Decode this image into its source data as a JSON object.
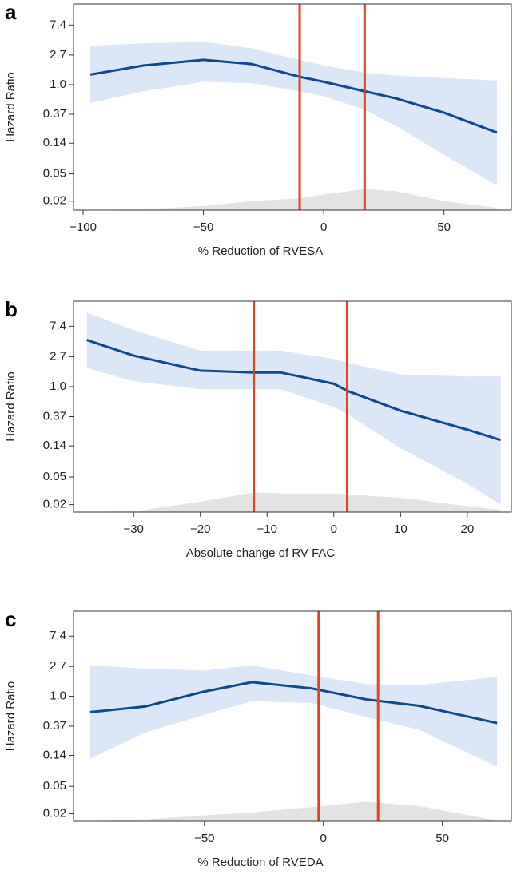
{
  "chart_data": [
    {
      "type": "line",
      "panel": "a",
      "ylabel": "Hazard Ratio",
      "xlabel": "% Reduction of RVESA",
      "log_y": true,
      "x": [
        -97,
        -75,
        -50,
        -30,
        -10,
        0,
        17,
        30,
        50,
        72
      ],
      "values": [
        1.4,
        1.9,
        2.3,
        2.0,
        1.3,
        1.1,
        0.8,
        0.63,
        0.39,
        0.2
      ],
      "upper": [
        3.7,
        4.0,
        4.2,
        3.4,
        2.3,
        1.9,
        1.5,
        1.35,
        1.25,
        1.15
      ],
      "lower": [
        0.54,
        0.8,
        1.1,
        1.05,
        0.8,
        0.68,
        0.43,
        0.25,
        0.095,
        0.034
      ],
      "density": [
        0.0149,
        0.0152,
        0.017,
        0.02,
        0.022,
        0.025,
        0.03,
        0.028,
        0.02,
        0.016
      ],
      "cutoffs": [
        -10,
        17
      ],
      "color": "#0d4a8c",
      "band_color": "#dbe6f7",
      "density_color": "#e3e3e3",
      "cutoff_color": "#e8401c",
      "xlim": [
        -104,
        78
      ],
      "ylim": [
        0.0148,
        15
      ],
      "xticks": [
        {
          "value": -100,
          "label": "−100"
        },
        {
          "value": -50,
          "label": "−50"
        },
        0,
        50
      ],
      "yticks": [
        0.02,
        0.05,
        0.14,
        0.37,
        {
          "value": 1,
          "label": "1.0"
        },
        2.7,
        7.4
      ]
    },
    {
      "type": "line",
      "panel": "b",
      "ylabel": "Hazard Ratio",
      "xlabel": "Absolute change of RV FAC",
      "log_y": true,
      "x": [
        -37,
        -30,
        -20,
        -12,
        -8,
        0,
        2,
        10,
        20,
        25
      ],
      "values": [
        4.7,
        2.8,
        1.7,
        1.6,
        1.6,
        1.1,
        0.87,
        0.45,
        0.24,
        0.17
      ],
      "upper": [
        11.6,
        6.5,
        3.3,
        3.3,
        3.3,
        2.5,
        2.2,
        1.5,
        1.4,
        1.4
      ],
      "lower": [
        1.85,
        1.2,
        0.92,
        0.92,
        0.92,
        0.51,
        0.4,
        0.13,
        0.04,
        0.02
      ],
      "density": [
        0.0157,
        0.016,
        0.022,
        0.03,
        0.029,
        0.029,
        0.028,
        0.025,
        0.019,
        0.017
      ],
      "cutoffs": [
        -12,
        2
      ],
      "color": "#0d4a8c",
      "band_color": "#dbe6f7",
      "density_color": "#e3e3e3",
      "cutoff_color": "#e8401c",
      "xlim": [
        -39,
        26.6
      ],
      "ylim": [
        0.0156,
        17
      ],
      "xticks": [
        {
          "value": -30,
          "label": "−30"
        },
        {
          "value": -20,
          "label": "−20"
        },
        {
          "value": -10,
          "label": "−10"
        },
        0,
        10,
        20
      ],
      "yticks": [
        0.02,
        0.05,
        0.14,
        0.37,
        {
          "value": 1,
          "label": "1.0"
        },
        2.7,
        7.4
      ]
    },
    {
      "type": "line",
      "panel": "c",
      "ylabel": "Hazard Ratio",
      "xlabel": "% Reduction of RVEDA",
      "log_y": true,
      "x": [
        -98,
        -75,
        -50,
        -30,
        -5,
        18,
        40,
        73
      ],
      "values": [
        0.59,
        0.71,
        1.17,
        1.6,
        1.3,
        0.9,
        0.73,
        0.41
      ],
      "upper": [
        2.8,
        2.5,
        2.35,
        2.8,
        2.0,
        1.5,
        1.45,
        1.9
      ],
      "lower": [
        0.125,
        0.3,
        0.54,
        0.85,
        0.8,
        0.5,
        0.33,
        0.096
      ],
      "density": [
        0.0157,
        0.0165,
        0.019,
        0.021,
        0.025,
        0.03,
        0.026,
        0.016
      ],
      "cutoffs": [
        -2,
        23
      ],
      "color": "#0d4a8c",
      "band_color": "#dbe6f7",
      "density_color": "#e3e3e3",
      "cutoff_color": "#e8401c",
      "xlim": [
        -105,
        79
      ],
      "ylim": [
        0.0156,
        17
      ],
      "xticks": [
        {
          "value": -50,
          "label": "−50"
        },
        0,
        50
      ],
      "yticks": [
        0.02,
        0.05,
        0.14,
        0.37,
        {
          "value": 1,
          "label": "1.0"
        },
        2.7,
        7.4
      ]
    }
  ]
}
